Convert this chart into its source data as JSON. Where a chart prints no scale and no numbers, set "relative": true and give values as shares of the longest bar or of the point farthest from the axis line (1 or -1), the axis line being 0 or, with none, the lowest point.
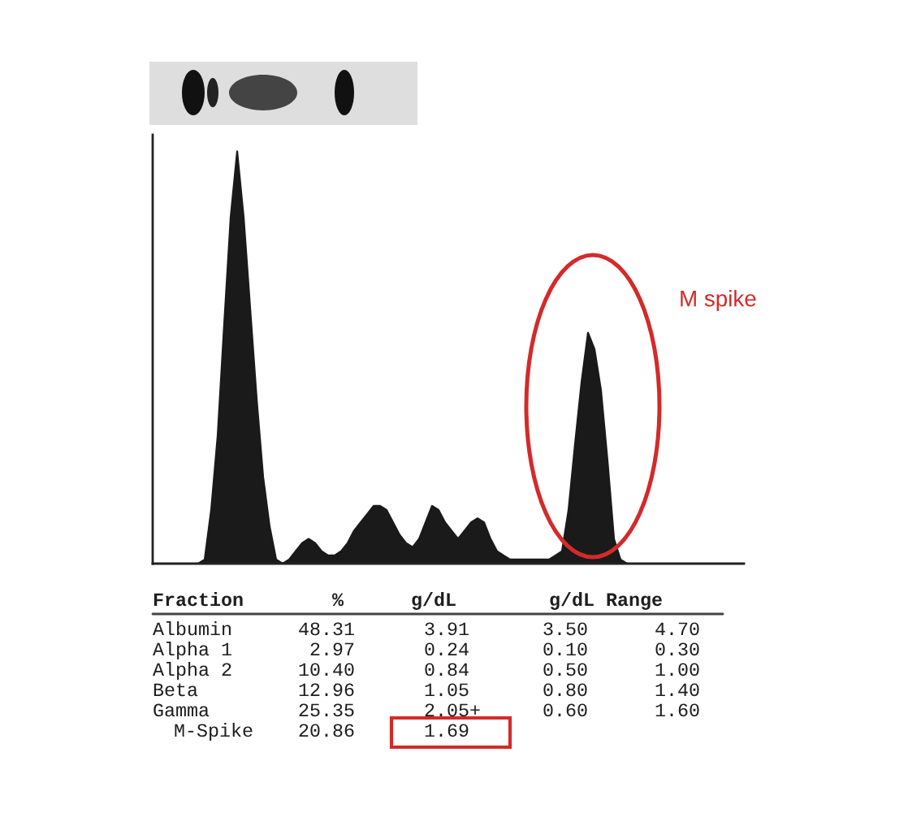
{
  "chart_data": {
    "type": "area",
    "relative": true,
    "color": "#1a1a1a",
    "categories": [
      null,
      null,
      null,
      null,
      null,
      null,
      null,
      null,
      null,
      null,
      null,
      null,
      null,
      null,
      null,
      null,
      null,
      null,
      null,
      null,
      null,
      null,
      null,
      null,
      null,
      null,
      null,
      null,
      null,
      null,
      null,
      null,
      null,
      null,
      null,
      null,
      null,
      null,
      null,
      null,
      null,
      null,
      null,
      null,
      null,
      null,
      null,
      null,
      null,
      null,
      null,
      null,
      null,
      null,
      null,
      null,
      null,
      null,
      null,
      null,
      null,
      null,
      null,
      null,
      null,
      null,
      null,
      null,
      null,
      null,
      null,
      null,
      null,
      null,
      null,
      null,
      null,
      null,
      null,
      null,
      null,
      null,
      null,
      null,
      null,
      null,
      null,
      null,
      null,
      null,
      null,
      null
    ],
    "values": [
      0,
      0,
      0,
      0,
      0,
      0,
      0,
      0,
      0.01,
      0.13,
      0.31,
      0.58,
      0.84,
      1,
      0.84,
      0.62,
      0.4,
      0.21,
      0.09,
      0.01,
      0,
      0.01,
      0.03,
      0.05,
      0.06,
      0.05,
      0.03,
      0.02,
      0.02,
      0.03,
      0.05,
      0.08,
      0.1,
      0.12,
      0.14,
      0.14,
      0.13,
      0.1,
      0.07,
      0.05,
      0.04,
      0.06,
      0.1,
      0.14,
      0.13,
      0.1,
      0.08,
      0.06,
      0.08,
      0.1,
      0.11,
      0.1,
      0.06,
      0.03,
      0.02,
      0.01,
      0.01,
      0.01,
      0.01,
      0.01,
      0.01,
      0.01,
      0.02,
      0.03,
      0.13,
      0.29,
      0.44,
      0.56,
      0.52,
      0.42,
      0.25,
      0.06,
      0.01,
      0,
      0,
      0,
      0,
      0,
      0,
      0,
      0,
      0,
      0,
      0,
      0,
      0,
      0,
      0,
      0,
      0,
      0,
      0
    ],
    "annotations": [
      "M spike",
      "Fraction\t%\tg/dL\tg/dL Range",
      "Albumin\t48.31\t3.91\t3.50\t4.70",
      "Alpha 1\t2.97\t0.24\t0.10\t0.30",
      "Alpha 2\t10.40\t0.84\t0.50\t1.00",
      "Beta\t12.96\t1.05\t0.80\t1.40",
      "Gamma\t25.35\t2.05+\t0.60\t1.60",
      "M-Spike\t20.86\t1.69"
    ]
  }
}
